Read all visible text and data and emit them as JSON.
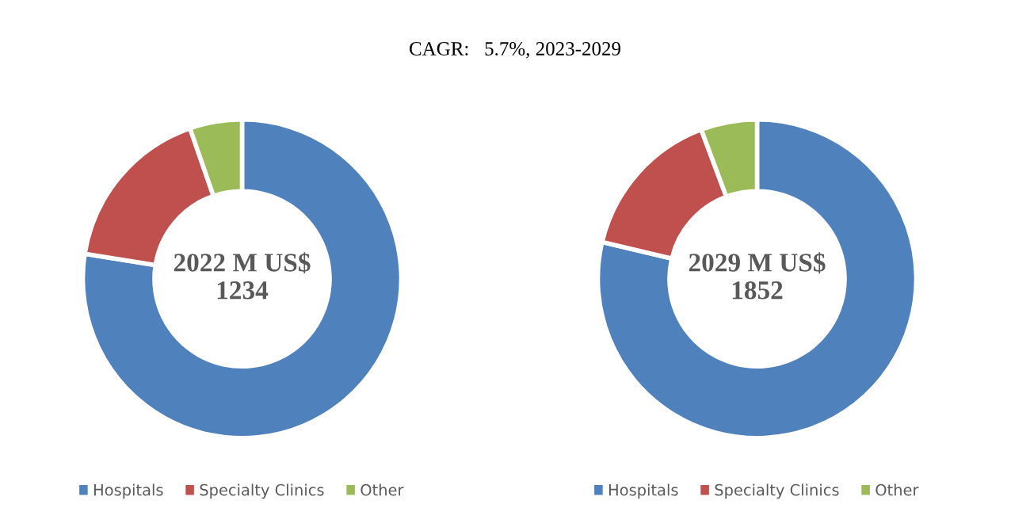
{
  "chart_data": [
    {
      "type": "donut",
      "title": "CAGR:   5.7%, 2023-2029",
      "annotations": [
        "2022 M US$\n1234"
      ],
      "categories": [
        "Hospitals",
        "Specialty Clinics",
        "Other"
      ],
      "values": [
        77.5,
        17.2,
        5.3
      ],
      "colors": [
        "#4f81bd",
        "#c0504d",
        "#9bbb59"
      ],
      "legend": "bottom"
    },
    {
      "type": "donut",
      "annotations": [
        "2029 M US$\n1852"
      ],
      "categories": [
        "Hospitals",
        "Specialty Clinics",
        "Other"
      ],
      "values": [
        78.7,
        15.6,
        5.7
      ],
      "colors": [
        "#4f81bd",
        "#c0504d",
        "#9bbb59"
      ],
      "legend": "bottom"
    }
  ]
}
